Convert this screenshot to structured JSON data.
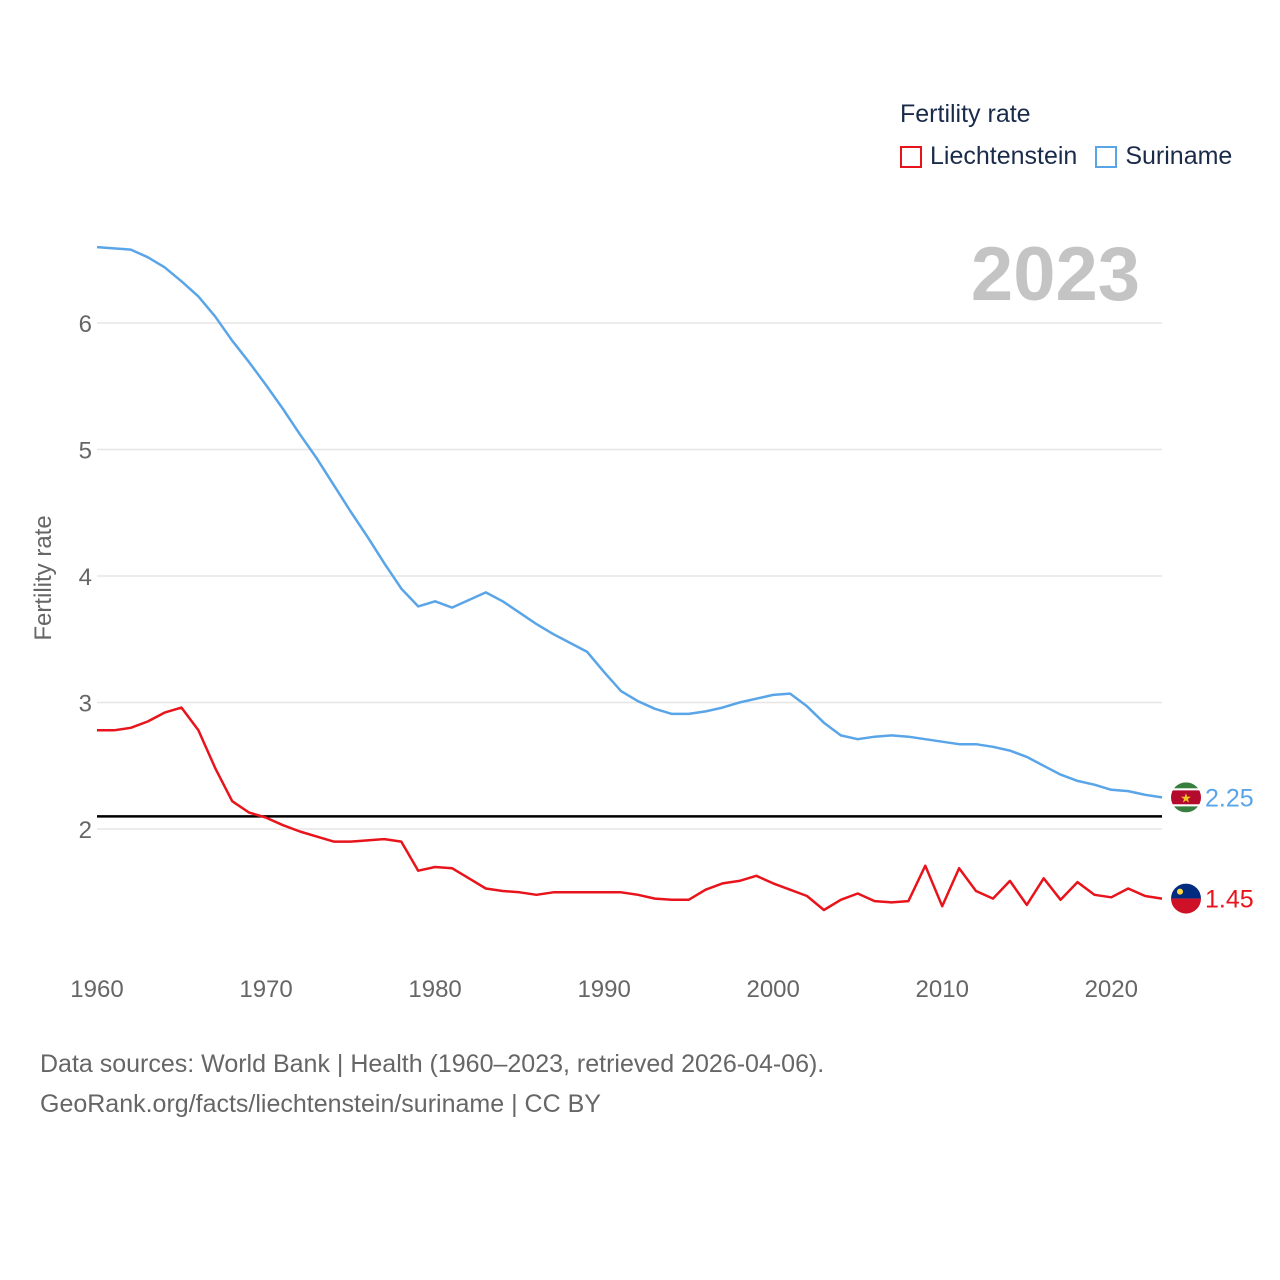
{
  "legend": {
    "title": "Fertility rate",
    "items": [
      {
        "label": "Liechtenstein",
        "color": "#e8141c"
      },
      {
        "label": "Suriname",
        "color": "#5aa5e8"
      }
    ]
  },
  "source": {
    "line1": "Data sources: World Bank | Health (1960–2023, retrieved 2026-04-06).",
    "line2": "GeoRank.org/facts/liechtenstein/suriname | CC BY"
  },
  "chart_data": {
    "type": "line",
    "year_label": "2023",
    "ylabel": "Fertility rate",
    "xlabel": "",
    "xlim": [
      1960,
      2023
    ],
    "ylim": [
      1.0,
      6.6
    ],
    "x_ticks": [
      1960,
      1970,
      1980,
      1990,
      2000,
      2010,
      2020
    ],
    "y_ticks": [
      2,
      3,
      4,
      5,
      6
    ],
    "reference_line": {
      "value": 2.1,
      "color": "#000000"
    },
    "x": [
      1960,
      1961,
      1962,
      1963,
      1964,
      1965,
      1966,
      1967,
      1968,
      1969,
      1970,
      1971,
      1972,
      1973,
      1974,
      1975,
      1976,
      1977,
      1978,
      1979,
      1980,
      1981,
      1982,
      1983,
      1984,
      1985,
      1986,
      1987,
      1988,
      1989,
      1990,
      1991,
      1992,
      1993,
      1994,
      1995,
      1996,
      1997,
      1998,
      1999,
      2000,
      2001,
      2002,
      2003,
      2004,
      2005,
      2006,
      2007,
      2008,
      2009,
      2010,
      2011,
      2012,
      2013,
      2014,
      2015,
      2016,
      2017,
      2018,
      2019,
      2020,
      2021,
      2022,
      2023
    ],
    "series": [
      {
        "name": "Liechtenstein",
        "color": "#e8141c",
        "end_label": "1.45",
        "values": [
          2.78,
          2.78,
          2.8,
          2.85,
          2.92,
          2.96,
          2.78,
          2.48,
          2.22,
          2.13,
          2.09,
          2.03,
          1.98,
          1.94,
          1.9,
          1.9,
          1.91,
          1.92,
          1.9,
          1.67,
          1.7,
          1.69,
          1.61,
          1.53,
          1.51,
          1.5,
          1.48,
          1.5,
          1.5,
          1.5,
          1.5,
          1.5,
          1.48,
          1.45,
          1.44,
          1.44,
          1.52,
          1.57,
          1.59,
          1.63,
          1.57,
          1.52,
          1.47,
          1.36,
          1.44,
          1.49,
          1.43,
          1.42,
          1.43,
          1.71,
          1.39,
          1.69,
          1.51,
          1.45,
          1.59,
          1.4,
          1.61,
          1.44,
          1.58,
          1.48,
          1.46,
          1.53,
          1.47,
          1.45
        ]
      },
      {
        "name": "Suriname",
        "color": "#5aa5e8",
        "end_label": "2.25",
        "values": [
          6.6,
          6.59,
          6.58,
          6.52,
          6.44,
          6.33,
          6.21,
          6.05,
          5.86,
          5.69,
          5.51,
          5.32,
          5.12,
          4.93,
          4.72,
          4.51,
          4.31,
          4.1,
          3.9,
          3.76,
          3.8,
          3.75,
          3.81,
          3.87,
          3.8,
          3.71,
          3.62,
          3.54,
          3.47,
          3.4,
          3.24,
          3.09,
          3.01,
          2.95,
          2.91,
          2.91,
          2.93,
          2.96,
          3.0,
          3.03,
          3.06,
          3.07,
          2.97,
          2.84,
          2.74,
          2.71,
          2.73,
          2.74,
          2.73,
          2.71,
          2.69,
          2.67,
          2.67,
          2.65,
          2.62,
          2.57,
          2.5,
          2.43,
          2.38,
          2.35,
          2.31,
          2.3,
          2.27,
          2.25
        ]
      }
    ]
  }
}
